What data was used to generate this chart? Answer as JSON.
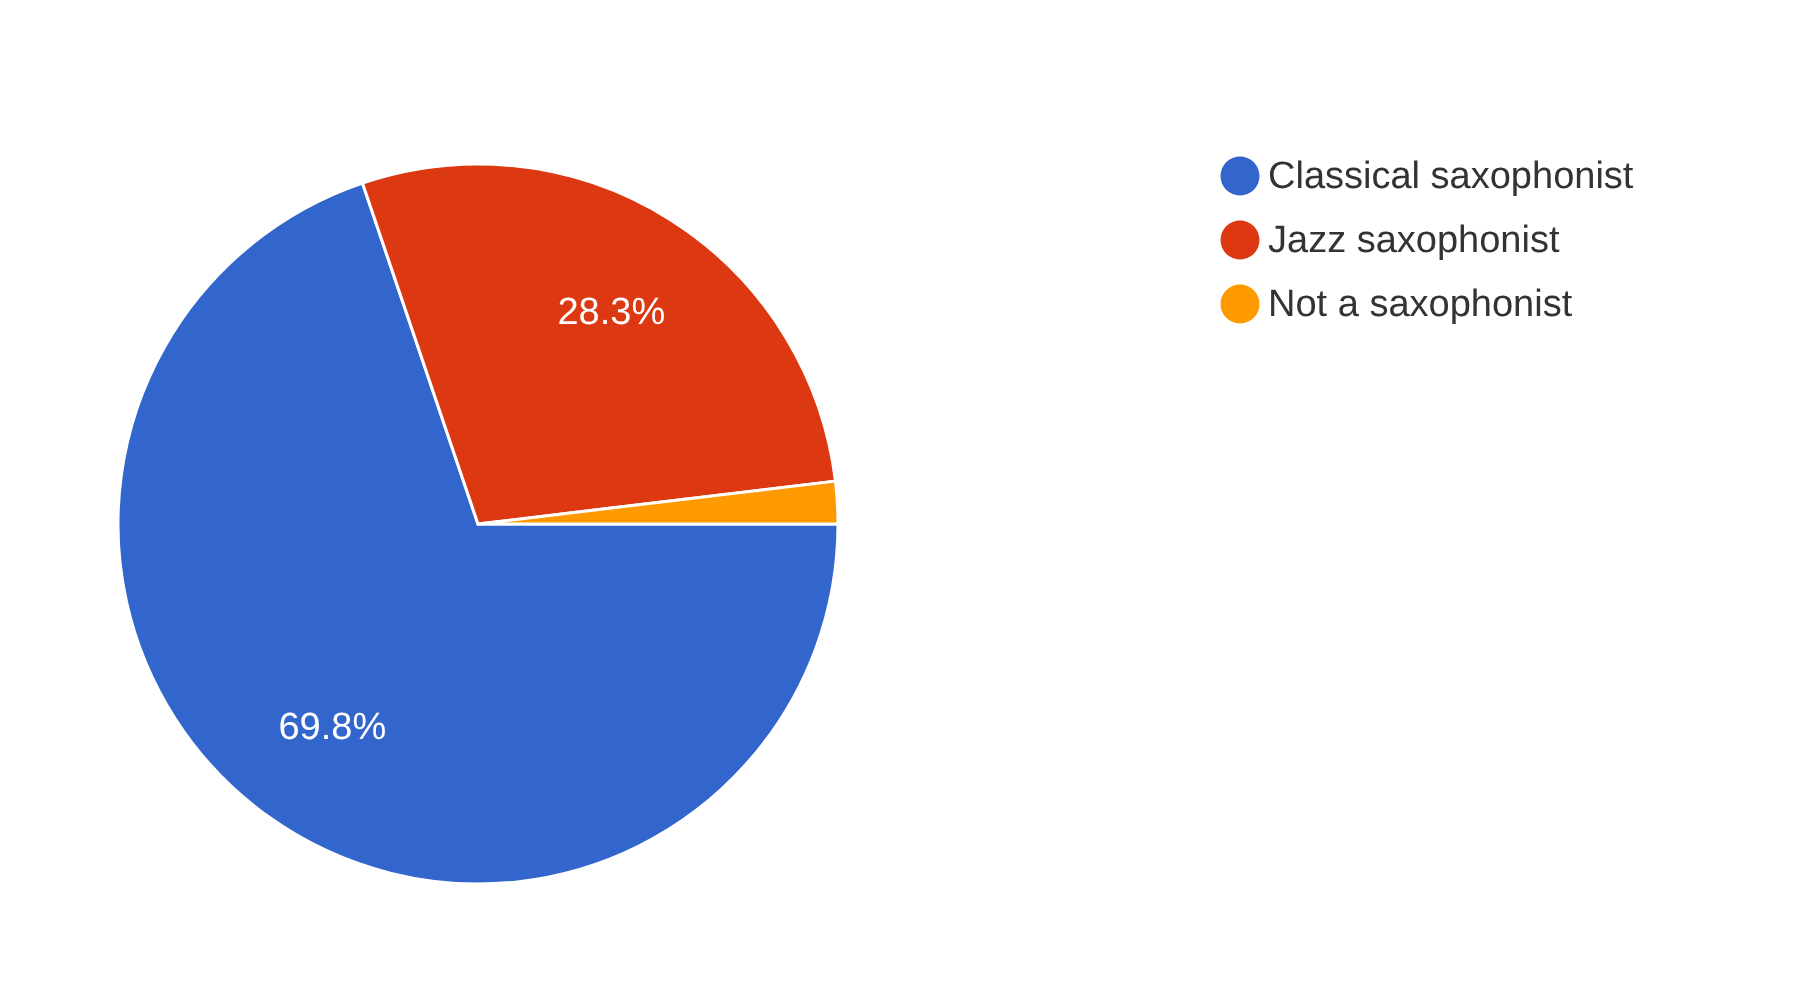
{
  "chart_data": {
    "type": "pie",
    "categories": [
      "Classical saxophonist",
      "Jazz saxophonist",
      "Not a saxophonist"
    ],
    "values": [
      69.8,
      28.3,
      1.9
    ],
    "colors": [
      "#3366cc",
      "#dc3912",
      "#ff9900"
    ],
    "value_labels": [
      "69.8%",
      "28.3%",
      null
    ],
    "legend": "top right"
  }
}
